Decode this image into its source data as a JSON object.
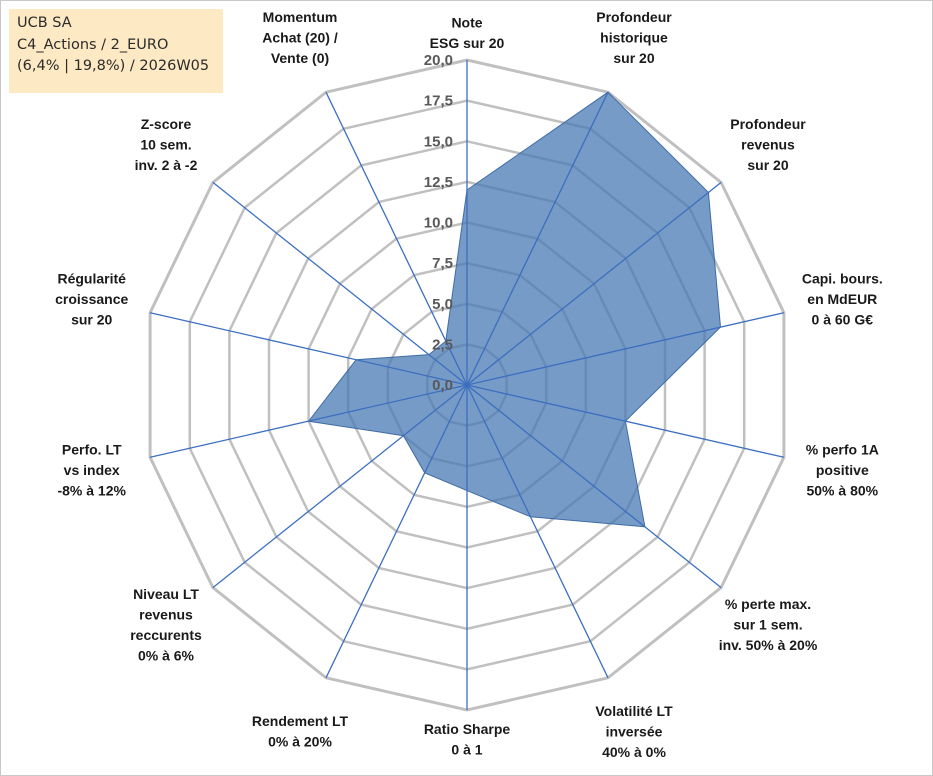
{
  "info_box": {
    "line1": "UCB SA",
    "line2": "C4_Actions / 2_EURO",
    "line3": "(6,4% | 19,8%) / 2026W05"
  },
  "colors": {
    "fill": "#4a7ab4",
    "axis": "#3d6fc0",
    "grid": "#c0c0c0",
    "background_box": "#fde9c4"
  },
  "chart_data": {
    "type": "radar",
    "title": "",
    "range": [
      0,
      20
    ],
    "grid": true,
    "ticks": [
      "0,0",
      "2,5",
      "5,0",
      "7,5",
      "10,0",
      "12,5",
      "15,0",
      "17,5",
      "20,0"
    ],
    "tick_values": [
      0,
      2.5,
      5,
      7.5,
      10,
      12.5,
      15,
      17.5,
      20
    ],
    "axes": [
      [
        "Note",
        "ESG sur 20"
      ],
      [
        "Profondeur",
        "historique",
        "sur 20"
      ],
      [
        "Profondeur",
        "revenus",
        "sur 20"
      ],
      [
        "Capi. bours.",
        "en MdEUR",
        "0 à 60 G€"
      ],
      [
        "% perfo 1A",
        "positive",
        "50% à 80%"
      ],
      [
        "% perte max.",
        "sur 1 sem.",
        "inv. 50% à 20%"
      ],
      [
        "Volatilité LT",
        "inversée",
        "40% à 0%"
      ],
      [
        "Ratio Sharpe",
        "0 à 1"
      ],
      [
        "Rendement LT",
        "0% à 20%"
      ],
      [
        "Niveau LT",
        "revenus",
        "reccurents",
        "0% à 6%"
      ],
      [
        "Perfo. LT",
        "vs index",
        "-8% à 12%"
      ],
      [
        "Régularité",
        "croissance",
        "sur 20"
      ],
      [
        "Z-score",
        "10 sem.",
        "inv. 2 à -2"
      ],
      [
        "Momentum",
        "Achat (20) /",
        "Vente (0)"
      ]
    ],
    "series": [
      {
        "values": [
          12.0,
          20.0,
          19.0,
          16.0,
          10.0,
          14.0,
          9.0,
          6.5,
          6.0,
          5.0,
          10.0,
          7.0,
          3.0,
          3.0
        ]
      }
    ]
  }
}
